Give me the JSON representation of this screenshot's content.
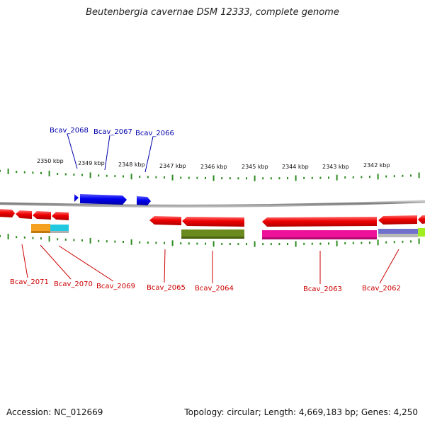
{
  "title": "Beutenbergia cavernae DSM 12333, complete genome",
  "footer": {
    "accession": "Accession: NC_012669",
    "summary": "Topology: circular; Length: 4,669,183 bp; Genes: 4,250"
  },
  "scale_labels": [
    "2350 kbp",
    "2349 kbp",
    "2348 kbp",
    "2347 kbp",
    "2346 kbp",
    "2345 kbp",
    "2344 kbp",
    "2343 kbp",
    "2342 kbp"
  ],
  "gene_labels_top": [
    "Bcav_2068",
    "Bcav_2067",
    "Bcav_2066"
  ],
  "gene_labels_bottom": [
    "Bcav_2071",
    "Bcav_2070",
    "Bcav_2069",
    "Bcav_2065",
    "Bcav_2064",
    "Bcav_2063",
    "Bcav_2062"
  ],
  "colors": {
    "forward_strand": "#0000ee",
    "reverse_strand": "#ee0000",
    "top_label": "#0000aa",
    "bottom_label": "#cc0000",
    "ticks": "#2e8b22",
    "backbone": "#888888",
    "cog_orange": "#f5a020",
    "cog_cyan": "#20c8e0",
    "cog_olive": "#6b8a1e",
    "cog_magenta": "#ee1199",
    "cog_purple": "#7070cc",
    "cog_lime": "#a0ee20"
  }
}
